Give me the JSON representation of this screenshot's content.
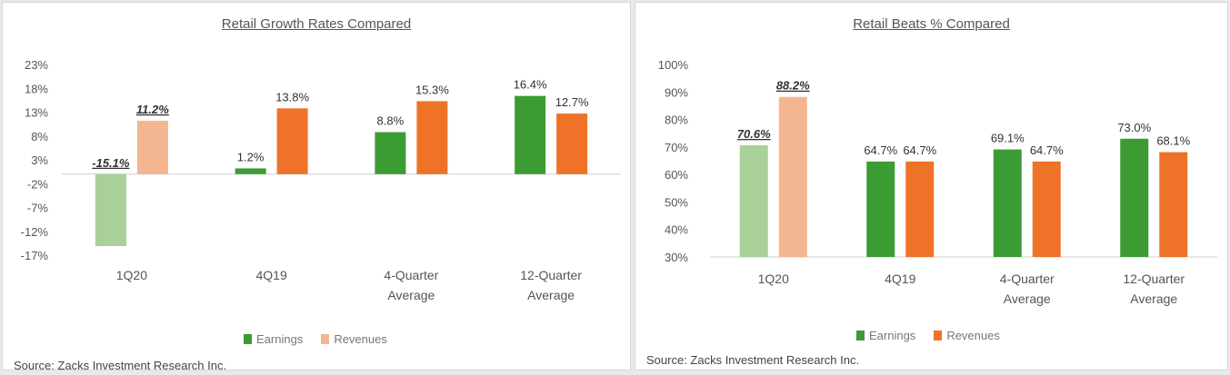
{
  "colors": {
    "earnings": "#3c9c34",
    "revenues": "#ee7328",
    "earnings_light": "#a8d098",
    "revenues_light": "#f4b690",
    "axis_text": "#555555",
    "axis_line": "#cfcfcf"
  },
  "chart_data": [
    {
      "type": "bar",
      "title": "Retail Growth Rates Compared",
      "categories": [
        "1Q20",
        "4Q19",
        "4-Quarter\nAverage",
        "12-Quarter\nAverage"
      ],
      "y_ticks": [
        "23%",
        "18%",
        "13%",
        "8%",
        "3%",
        "-2%",
        "-7%",
        "-12%",
        "-17%"
      ],
      "ylim": [
        -17,
        23
      ],
      "series": [
        {
          "name": "Earnings",
          "values": [
            -15.1,
            1.2,
            8.8,
            16.4
          ],
          "labels": [
            "-15.1%",
            "1.2%",
            "8.8%",
            "16.4%"
          ]
        },
        {
          "name": "Revenues",
          "values": [
            11.2,
            13.8,
            15.3,
            12.7
          ],
          "labels": [
            "11.2%",
            "13.8%",
            "15.3%",
            "12.7%"
          ]
        }
      ],
      "highlight_category": 0,
      "legend_position": "bottom",
      "grid": false,
      "source": "Source: Zacks Investment Research Inc."
    },
    {
      "type": "bar",
      "title": "Retail Beats % Compared",
      "categories": [
        "1Q20",
        "4Q19",
        "4-Quarter\nAverage",
        "12-Quarter\nAverage"
      ],
      "y_ticks": [
        "100%",
        "90%",
        "80%",
        "70%",
        "60%",
        "50%",
        "40%",
        "30%"
      ],
      "ylim": [
        30,
        100
      ],
      "series": [
        {
          "name": "Earnings",
          "values": [
            70.6,
            64.7,
            69.1,
            73.0
          ],
          "labels": [
            "70.6%",
            "64.7%",
            "69.1%",
            "73.0%"
          ]
        },
        {
          "name": "Revenues",
          "values": [
            88.2,
            64.7,
            64.7,
            68.1
          ],
          "labels": [
            "88.2%",
            "64.7%",
            "64.7%",
            "68.1%"
          ]
        }
      ],
      "highlight_category": 0,
      "legend_position": "bottom",
      "grid": false,
      "source": "Source: Zacks Investment Research Inc."
    }
  ]
}
